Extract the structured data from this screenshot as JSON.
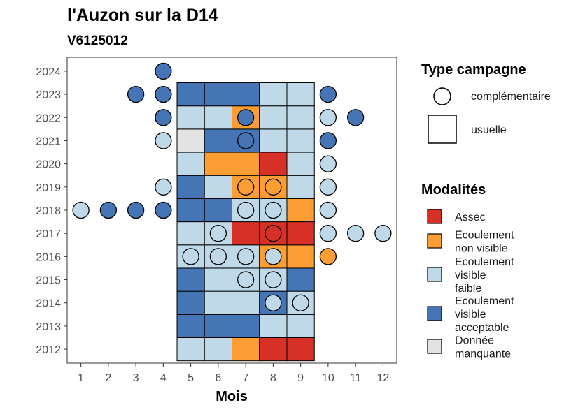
{
  "chart_data": {
    "type": "heatmap",
    "title": "l'Auzon sur la D14",
    "subtitle": "V6125012",
    "xlabel": "Mois",
    "ylabel": "",
    "x_ticks": [
      "1",
      "2",
      "3",
      "4",
      "5",
      "6",
      "7",
      "8",
      "9",
      "10",
      "11",
      "12"
    ],
    "y_ticks": [
      "2012",
      "2013",
      "2014",
      "2015",
      "2016",
      "2017",
      "2018",
      "2019",
      "2020",
      "2021",
      "2022",
      "2023",
      "2024"
    ],
    "xlim": [
      0.5,
      12.5
    ],
    "ylim": [
      2011.4,
      2024.6
    ],
    "grid": false,
    "legend_position": "right",
    "modalites": [
      {
        "key": "assec",
        "label": "Assec",
        "color": "#d73027"
      },
      {
        "key": "nv",
        "label": "Ecoulement\nnon visible",
        "color": "#fc9e33"
      },
      {
        "key": "faible",
        "label": "Ecoulement\nvisible\nfaible",
        "color": "#bfd9e8"
      },
      {
        "key": "acceptable",
        "label": "Ecoulement\nvisible\nacceptable",
        "color": "#4575b4"
      },
      {
        "key": "manquante",
        "label": "Donnée\nmanquante",
        "color": "#e3e3e3"
      }
    ],
    "type_campagne": {
      "title": "Type campagne",
      "complementaire": "complémentaire",
      "usuelle": "usuelle"
    },
    "modalites_title": "Modalités",
    "usuelle": [
      {
        "year": 2012,
        "values": [
          "faible",
          "faible",
          "nv",
          "assec",
          "assec"
        ]
      },
      {
        "year": 2013,
        "values": [
          "acceptable",
          "acceptable",
          "acceptable",
          "faible",
          "faible"
        ]
      },
      {
        "year": 2014,
        "values": [
          "acceptable",
          "faible",
          "faible",
          "acceptable",
          "faible"
        ]
      },
      {
        "year": 2015,
        "values": [
          "acceptable",
          "faible",
          "faible",
          "faible",
          "acceptable"
        ]
      },
      {
        "year": 2016,
        "values": [
          "faible",
          "faible",
          "faible",
          "nv",
          "nv"
        ]
      },
      {
        "year": 2017,
        "values": [
          "faible",
          "faible",
          "assec",
          "assec",
          "assec"
        ]
      },
      {
        "year": 2018,
        "values": [
          "acceptable",
          "acceptable",
          "faible",
          "faible",
          "nv"
        ]
      },
      {
        "year": 2019,
        "values": [
          "acceptable",
          "faible",
          "nv",
          "nv",
          "faible"
        ]
      },
      {
        "year": 2020,
        "values": [
          "faible",
          "nv",
          "nv",
          "assec",
          "faible"
        ]
      },
      {
        "year": 2021,
        "values": [
          "manquante",
          "acceptable",
          "acceptable",
          "faible",
          "faible"
        ]
      },
      {
        "year": 2022,
        "values": [
          "faible",
          "faible",
          "nv",
          "faible",
          "faible"
        ]
      },
      {
        "year": 2023,
        "values": [
          "acceptable",
          "acceptable",
          "acceptable",
          "faible",
          "faible"
        ]
      }
    ],
    "usuelle_months": [
      5,
      6,
      7,
      8,
      9
    ],
    "complementaire": [
      {
        "year": 2024,
        "month": 4,
        "value": "acceptable"
      },
      {
        "year": 2023,
        "month": 3,
        "value": "acceptable"
      },
      {
        "year": 2023,
        "month": 4,
        "value": "acceptable"
      },
      {
        "year": 2023,
        "month": 10,
        "value": "acceptable"
      },
      {
        "year": 2022,
        "month": 4,
        "value": "acceptable"
      },
      {
        "year": 2022,
        "month": 7,
        "value": "acceptable"
      },
      {
        "year": 2022,
        "month": 10,
        "value": "faible"
      },
      {
        "year": 2022,
        "month": 11,
        "value": "acceptable"
      },
      {
        "year": 2021,
        "month": 4,
        "value": "faible"
      },
      {
        "year": 2021,
        "month": 7,
        "value": "acceptable"
      },
      {
        "year": 2021,
        "month": 10,
        "value": "acceptable"
      },
      {
        "year": 2020,
        "month": 10,
        "value": "faible"
      },
      {
        "year": 2019,
        "month": 4,
        "value": "faible"
      },
      {
        "year": 2019,
        "month": 7,
        "value": "nv"
      },
      {
        "year": 2019,
        "month": 8,
        "value": "nv"
      },
      {
        "year": 2019,
        "month": 10,
        "value": "faible"
      },
      {
        "year": 2018,
        "month": 1,
        "value": "faible"
      },
      {
        "year": 2018,
        "month": 2,
        "value": "acceptable"
      },
      {
        "year": 2018,
        "month": 3,
        "value": "acceptable"
      },
      {
        "year": 2018,
        "month": 4,
        "value": "acceptable"
      },
      {
        "year": 2018,
        "month": 7,
        "value": "faible"
      },
      {
        "year": 2018,
        "month": 8,
        "value": "faible"
      },
      {
        "year": 2018,
        "month": 10,
        "value": "faible"
      },
      {
        "year": 2017,
        "month": 6,
        "value": "faible"
      },
      {
        "year": 2017,
        "month": 8,
        "value": "assec"
      },
      {
        "year": 2017,
        "month": 10,
        "value": "faible"
      },
      {
        "year": 2017,
        "month": 11,
        "value": "faible"
      },
      {
        "year": 2017,
        "month": 12,
        "value": "faible"
      },
      {
        "year": 2016,
        "month": 5,
        "value": "faible"
      },
      {
        "year": 2016,
        "month": 6,
        "value": "faible"
      },
      {
        "year": 2016,
        "month": 7,
        "value": "faible"
      },
      {
        "year": 2016,
        "month": 8,
        "value": "faible"
      },
      {
        "year": 2016,
        "month": 10,
        "value": "nv"
      },
      {
        "year": 2015,
        "month": 7,
        "value": "faible"
      },
      {
        "year": 2015,
        "month": 8,
        "value": "faible"
      },
      {
        "year": 2014,
        "month": 8,
        "value": "faible"
      },
      {
        "year": 2014,
        "month": 9,
        "value": "faible"
      }
    ]
  }
}
